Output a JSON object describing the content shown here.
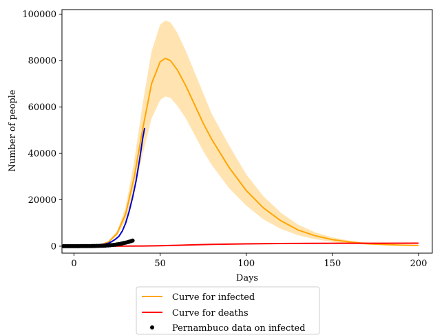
{
  "chart_data": {
    "type": "line",
    "title": "",
    "xlabel": "Days",
    "ylabel": "Number of people",
    "xlim": [
      -7,
      208
    ],
    "ylim": [
      -3000,
      102000
    ],
    "x_ticks": [
      0,
      50,
      100,
      150,
      200
    ],
    "y_ticks": [
      0,
      20000,
      40000,
      60000,
      80000,
      100000
    ],
    "grid": false,
    "legend_position": "bottom-center",
    "series": [
      {
        "name": "Curve for infected",
        "kind": "line",
        "color": "#ffa500",
        "x": [
          0,
          5,
          10,
          15,
          20,
          25,
          30,
          35,
          40,
          45,
          50,
          53,
          56,
          60,
          65,
          70,
          75,
          80,
          90,
          100,
          110,
          120,
          130,
          140,
          150,
          160,
          170,
          180,
          190,
          200
        ],
        "y": [
          0,
          50,
          150,
          500,
          1800,
          5500,
          14000,
          30000,
          51000,
          70000,
          79500,
          81000,
          80000,
          76000,
          69000,
          61000,
          53000,
          46000,
          34000,
          24000,
          16500,
          11000,
          7000,
          4500,
          2800,
          1800,
          1100,
          700,
          450,
          300
        ],
        "band_lower": [
          0,
          40,
          120,
          400,
          1400,
          4500,
          11000,
          24000,
          40000,
          55000,
          63000,
          64500,
          64000,
          60500,
          55000,
          48000,
          41000,
          35000,
          25000,
          17500,
          11500,
          7500,
          4700,
          3000,
          1800,
          1100,
          650,
          400,
          250,
          150
        ],
        "band_upper": [
          0,
          60,
          180,
          600,
          2200,
          6600,
          17000,
          37000,
          62000,
          84000,
          95500,
          97300,
          96500,
          92000,
          84000,
          75000,
          66000,
          57000,
          43500,
          31000,
          21500,
          14500,
          9300,
          6000,
          3800,
          2400,
          1500,
          950,
          600,
          400
        ]
      },
      {
        "name": "Curve for deaths",
        "kind": "line",
        "color": "#ff0000",
        "x": [
          0,
          10,
          20,
          30,
          40,
          50,
          60,
          70,
          80,
          90,
          100,
          120,
          140,
          160,
          180,
          200
        ],
        "y": [
          0,
          0,
          5,
          20,
          80,
          200,
          380,
          580,
          760,
          900,
          1000,
          1150,
          1220,
          1260,
          1280,
          1300
        ]
      },
      {
        "name": "",
        "kind": "line",
        "color": "#0000cc",
        "x": [
          0,
          5,
          10,
          15,
          18,
          20,
          22,
          24,
          26,
          28,
          30,
          32,
          34,
          36,
          38,
          40,
          41
        ],
        "y": [
          200,
          300,
          400,
          600,
          900,
          1300,
          2000,
          3000,
          4200,
          6500,
          10000,
          15000,
          21000,
          28000,
          37000,
          47000,
          51000
        ]
      },
      {
        "name": "Pernambuco data on infected",
        "kind": "scatter",
        "color": "#000000",
        "x": [
          -6,
          -5,
          -4,
          -3,
          -2,
          -1,
          0,
          1,
          2,
          3,
          4,
          5,
          6,
          7,
          8,
          9,
          10,
          11,
          12,
          13,
          14,
          15,
          16,
          17,
          18,
          19,
          20,
          21,
          22,
          23,
          24,
          25,
          26,
          27,
          28,
          29,
          30,
          31,
          32,
          33,
          34
        ],
        "y": [
          0,
          0,
          0,
          0,
          0,
          0,
          2,
          5,
          7,
          10,
          15,
          20,
          25,
          30,
          40,
          50,
          60,
          70,
          85,
          100,
          120,
          140,
          170,
          200,
          240,
          290,
          340,
          400,
          470,
          550,
          650,
          760,
          890,
          1030,
          1180,
          1350,
          1530,
          1720,
          1920,
          2150,
          2400
        ]
      }
    ]
  }
}
